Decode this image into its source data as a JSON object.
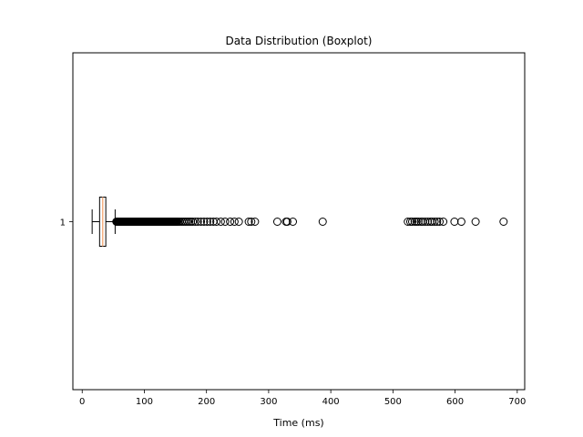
{
  "chart_data": {
    "type": "boxplot",
    "orientation": "horizontal",
    "title": "Data Distribution (Boxplot)",
    "xlabel": "Time (ms)",
    "ylabel": "",
    "xlim": [
      -15,
      712
    ],
    "x_ticks": [
      0,
      100,
      200,
      300,
      400,
      500,
      600,
      700
    ],
    "y_tick_labels": [
      "1"
    ],
    "grid": false,
    "boxes": [
      {
        "label": "1",
        "whisker_low": 16,
        "q1": 28,
        "median": 33,
        "q3": 38,
        "whisker_high": 53,
        "fliers": [
          55,
          56,
          57,
          58,
          59,
          60,
          61,
          62,
          63,
          64,
          65,
          66,
          67,
          68,
          69,
          70,
          71,
          72,
          73,
          74,
          75,
          76,
          77,
          78,
          79,
          80,
          81,
          82,
          83,
          84,
          85,
          86,
          87,
          88,
          89,
          90,
          91,
          92,
          93,
          94,
          95,
          96,
          97,
          98,
          99,
          100,
          101,
          102,
          103,
          104,
          105,
          106,
          107,
          108,
          109,
          110,
          111,
          112,
          113,
          114,
          115,
          116,
          117,
          118,
          119,
          120,
          121,
          122,
          123,
          124,
          125,
          126,
          127,
          128,
          129,
          130,
          131,
          132,
          133,
          134,
          135,
          136,
          137,
          138,
          139,
          140,
          141,
          142,
          143,
          144,
          145,
          146,
          147,
          148,
          149,
          150,
          151,
          152,
          153,
          155,
          157,
          160,
          163,
          166,
          169,
          172,
          175,
          178,
          182,
          186,
          191,
          196,
          201,
          206,
          211,
          216,
          223,
          230,
          238,
          245,
          252,
          268,
          272,
          278,
          314,
          328,
          330,
          339,
          387,
          524,
          528,
          531,
          535,
          538,
          541,
          545,
          548,
          552,
          556,
          560,
          563,
          567,
          571,
          575,
          581,
          599,
          610,
          633,
          678
        ],
        "box_color": "#ffffff",
        "median_color": "#f5b183",
        "edge_color": "#000000"
      }
    ]
  }
}
